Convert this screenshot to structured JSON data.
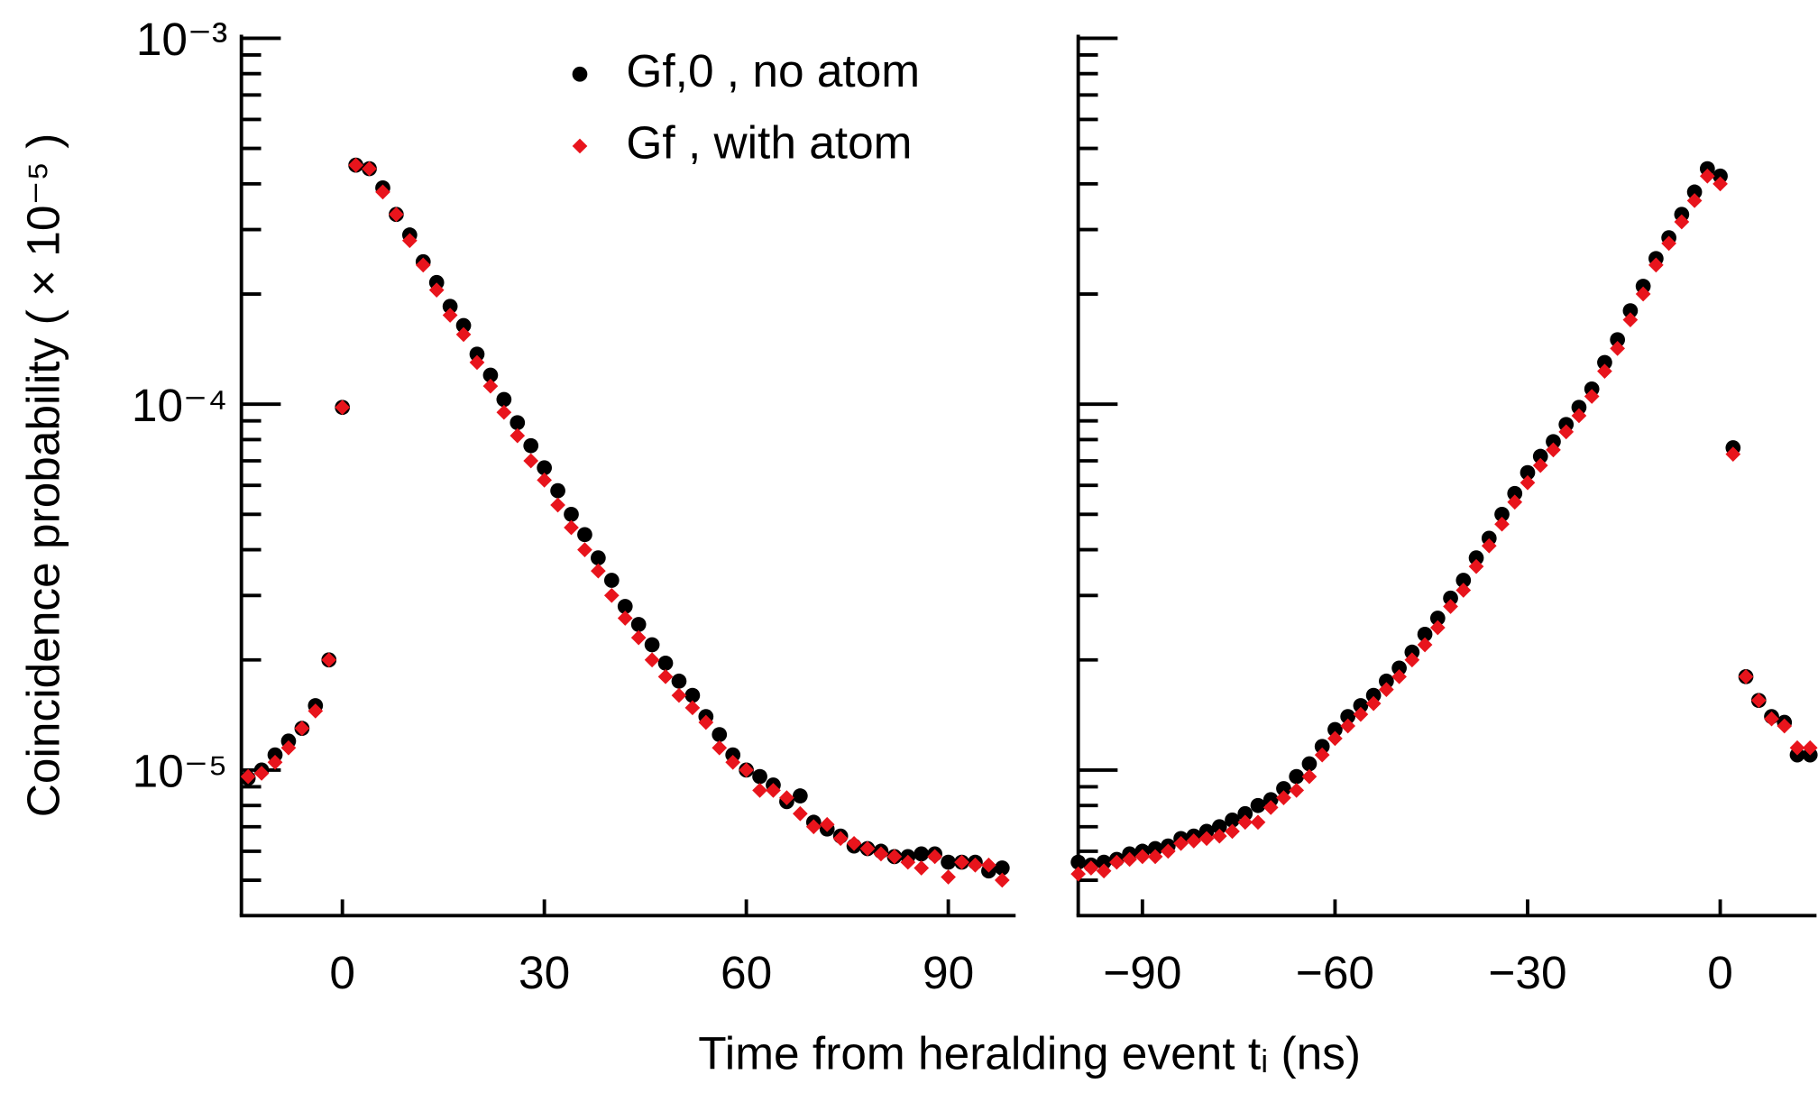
{
  "chart_data": [
    {
      "type": "scatter",
      "ylabel": "Coincidence probability ( × 10⁻⁵ )",
      "xlabel": "Time from heralding event tᵢ (ns)",
      "yscale": "log",
      "ylim": [
        4e-06,
        0.001
      ],
      "yticks": [
        {
          "value": 0.001,
          "label": "10⁻³"
        },
        {
          "value": 0.0001,
          "label": "10⁻⁴"
        },
        {
          "value": 1e-05,
          "label": "10⁻⁵"
        }
      ],
      "yminorticks": [
        5e-06,
        6e-06,
        7e-06,
        8e-06,
        9e-06,
        2e-05,
        3e-05,
        4e-05,
        5e-05,
        6e-05,
        7e-05,
        8e-05,
        9e-05,
        0.0002,
        0.0003,
        0.0004,
        0.0005,
        0.0006,
        0.0007,
        0.0008,
        0.0009
      ],
      "xlim": [
        -15,
        100
      ],
      "xticks": [
        0,
        30,
        60,
        90
      ],
      "legend": "top",
      "x": [
        -14,
        -12,
        -10,
        -8,
        -6,
        -4,
        -2,
        0,
        2,
        4,
        6,
        8,
        10,
        12,
        14,
        16,
        18,
        20,
        22,
        24,
        26,
        28,
        30,
        32,
        34,
        36,
        38,
        40,
        42,
        44,
        46,
        48,
        50,
        52,
        54,
        56,
        58,
        60,
        62,
        64,
        66,
        68,
        70,
        72,
        74,
        76,
        78,
        80,
        82,
        84,
        86,
        88,
        90,
        92,
        94,
        96,
        98
      ],
      "series": [
        {
          "name": "Gf,0 , no atom",
          "color": "#000000",
          "marker": "circle",
          "values": [
            9.5e-06,
            1e-05,
            1.1e-05,
            1.2e-05,
            1.3e-05,
            1.5e-05,
            2e-05,
            9.8e-05,
            0.00045,
            0.00044,
            0.00039,
            0.00033,
            0.00029,
            0.000245,
            0.000215,
            0.000185,
            0.000164,
            0.000137,
            0.00012,
            0.000103,
            8.9e-05,
            7.7e-05,
            6.7e-05,
            5.8e-05,
            5e-05,
            4.4e-05,
            3.8e-05,
            3.3e-05,
            2.8e-05,
            2.5e-05,
            2.2e-05,
            1.96e-05,
            1.75e-05,
            1.6e-05,
            1.4e-05,
            1.25e-05,
            1.1e-05,
            1e-05,
            9.6e-06,
            9.1e-06,
            8.2e-06,
            8.5e-06,
            7.2e-06,
            6.9e-06,
            6.6e-06,
            6.2e-06,
            6.1e-06,
            6e-06,
            5.8e-06,
            5.8e-06,
            5.9e-06,
            5.9e-06,
            5.6e-06,
            5.6e-06,
            5.6e-06,
            5.3e-06,
            5.4e-06
          ]
        },
        {
          "name": "Gf , with atom",
          "color": "#e8141c",
          "marker": "diamond",
          "values": [
            9.6e-06,
            9.8e-06,
            1.05e-05,
            1.15e-05,
            1.3e-05,
            1.45e-05,
            2e-05,
            9.8e-05,
            0.00045,
            0.00044,
            0.00038,
            0.00033,
            0.00028,
            0.00024,
            0.000205,
            0.000175,
            0.000155,
            0.00013,
            0.000112,
            9.5e-05,
            8.2e-05,
            7e-05,
            6.2e-05,
            5.3e-05,
            4.6e-05,
            4e-05,
            3.5e-05,
            3e-05,
            2.6e-05,
            2.3e-05,
            2e-05,
            1.8e-05,
            1.6e-05,
            1.48e-05,
            1.35e-05,
            1.15e-05,
            1.05e-05,
            1e-05,
            8.8e-06,
            8.8e-06,
            8.4e-06,
            7.6e-06,
            7e-06,
            7.1e-06,
            6.5e-06,
            6.3e-06,
            6.1e-06,
            5.9e-06,
            5.8e-06,
            5.6e-06,
            5.4e-06,
            5.8e-06,
            5.1e-06,
            5.6e-06,
            5.5e-06,
            5.5e-06,
            5e-06
          ]
        }
      ]
    },
    {
      "type": "scatter",
      "yscale": "log",
      "ylim": [
        4e-06,
        0.001
      ],
      "yticks": [
        0.001,
        0.0001,
        1e-05
      ],
      "yminorticks": [
        5e-06,
        6e-06,
        7e-06,
        8e-06,
        9e-06,
        2e-05,
        3e-05,
        4e-05,
        5e-05,
        6e-05,
        7e-05,
        8e-05,
        9e-05,
        0.0002,
        0.0003,
        0.0004,
        0.0005,
        0.0006,
        0.0007,
        0.0008,
        0.0009
      ],
      "xlim": [
        -100,
        15
      ],
      "xticks": [
        {
          "value": -90,
          "label": "−90"
        },
        {
          "value": -60,
          "label": "−60"
        },
        {
          "value": -30,
          "label": "−30"
        },
        0
      ],
      "x": [
        -100,
        -98,
        -96,
        -94,
        -92,
        -90,
        -88,
        -86,
        -84,
        -82,
        -80,
        -78,
        -76,
        -74,
        -72,
        -70,
        -68,
        -66,
        -64,
        -62,
        -60,
        -58,
        -56,
        -54,
        -52,
        -50,
        -48,
        -46,
        -44,
        -42,
        -40,
        -38,
        -36,
        -34,
        -32,
        -30,
        -28,
        -26,
        -24,
        -22,
        -20,
        -18,
        -16,
        -14,
        -12,
        -10,
        -8,
        -6,
        -4,
        -2,
        0,
        2,
        4,
        6,
        8,
        10,
        12,
        14
      ],
      "series": [
        {
          "color": "#000000",
          "marker": "circle",
          "values": [
            5.6e-06,
            5.5e-06,
            5.6e-06,
            5.7e-06,
            5.9e-06,
            6e-06,
            6.1e-06,
            6.2e-06,
            6.5e-06,
            6.6e-06,
            6.8e-06,
            7e-06,
            7.3e-06,
            7.6e-06,
            8e-06,
            8.3e-06,
            8.9e-06,
            9.6e-06,
            1.04e-05,
            1.16e-05,
            1.29e-05,
            1.4e-05,
            1.5e-05,
            1.6e-05,
            1.75e-05,
            1.9e-05,
            2.1e-05,
            2.35e-05,
            2.6e-05,
            2.95e-05,
            3.3e-05,
            3.8e-05,
            4.3e-05,
            5e-05,
            5.7e-05,
            6.5e-05,
            7.2e-05,
            7.9e-05,
            8.8e-05,
            9.8e-05,
            0.00011,
            0.00013,
            0.00015,
            0.00018,
            0.00021,
            0.00025,
            0.000285,
            0.00033,
            0.00038,
            0.00044,
            0.00042,
            7.6e-05,
            1.8e-05,
            1.55e-05,
            1.4e-05,
            1.35e-05,
            1.1e-05,
            1.1e-05
          ]
        },
        {
          "color": "#e8141c",
          "marker": "diamond",
          "values": [
            5.2e-06,
            5.4e-06,
            5.3e-06,
            5.6e-06,
            5.7e-06,
            5.8e-06,
            5.8e-06,
            6e-06,
            6.3e-06,
            6.4e-06,
            6.5e-06,
            6.6e-06,
            6.8e-06,
            7.2e-06,
            7.2e-06,
            7.9e-06,
            8.4e-06,
            8.8e-06,
            9.6e-06,
            1.1e-05,
            1.22e-05,
            1.32e-05,
            1.42e-05,
            1.52e-05,
            1.66e-05,
            1.8e-05,
            2e-05,
            2.2e-05,
            2.45e-05,
            2.8e-05,
            3.1e-05,
            3.6e-05,
            4.1e-05,
            4.7e-05,
            5.4e-05,
            6.1e-05,
            6.8e-05,
            7.5e-05,
            8.4e-05,
            9.3e-05,
            0.000105,
            0.000123,
            0.000142,
            0.00017,
            0.0002,
            0.00024,
            0.000275,
            0.000315,
            0.00036,
            0.00042,
            0.0004,
            7.3e-05,
            1.8e-05,
            1.55e-05,
            1.38e-05,
            1.32e-05,
            1.15e-05,
            1.15e-05
          ]
        }
      ]
    }
  ]
}
